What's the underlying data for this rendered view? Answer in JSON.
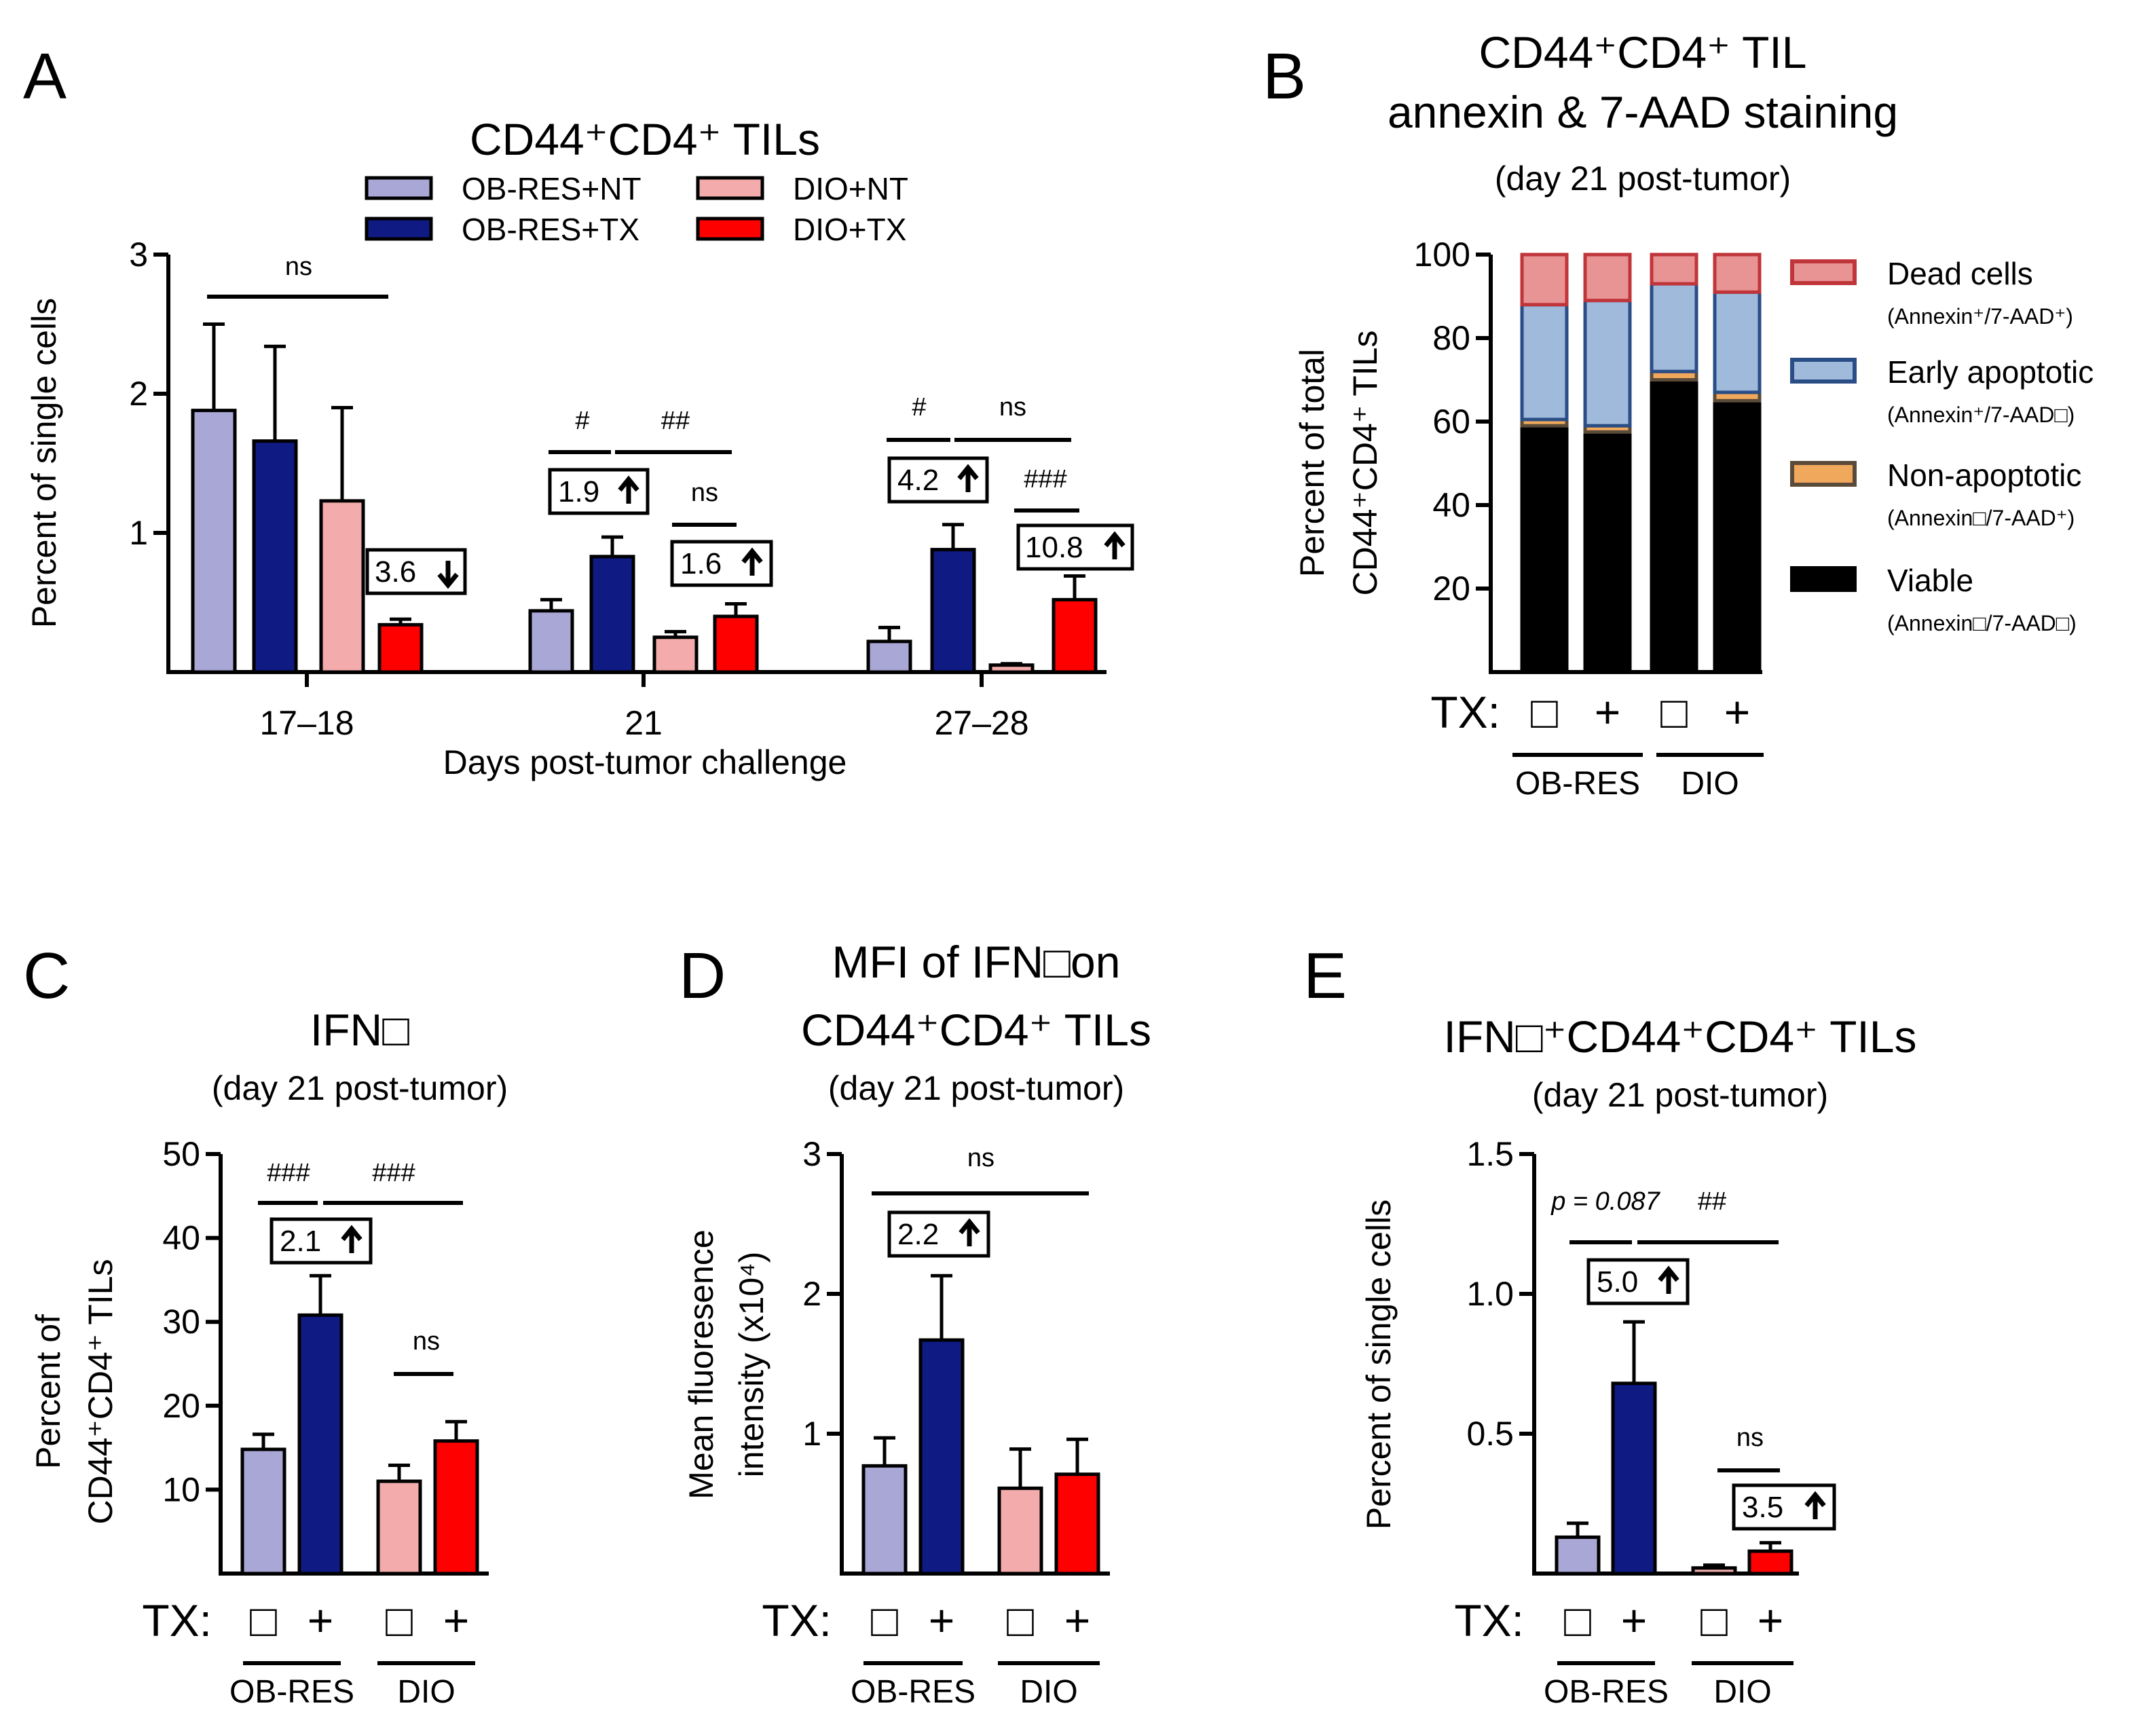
{
  "colors": {
    "ob_nt": "#a9a7d6",
    "ob_tx": "#0f1a83",
    "dio_nt": "#f3abab",
    "dio_tx": "#ff0000",
    "dead": "#e89494",
    "dead_edge": "#c0353a",
    "early": "#9fbadb",
    "early_edge": "#2a4d85",
    "nonapop": "#f0a95c",
    "nonapop_edge": "#5a4a3a",
    "viable": "#000000"
  },
  "legend_A": [
    {
      "label": "OB-RES+NT",
      "color": "#a9a7d6"
    },
    {
      "label": "DIO+NT",
      "color": "#f3abab"
    },
    {
      "label": "OB-RES+TX",
      "color": "#0f1a83"
    },
    {
      "label": "DIO+TX",
      "color": "#ff0000"
    }
  ],
  "legend_B": [
    {
      "label": "Dead cells",
      "sub": "(Annexin⁺/7-AAD⁺)",
      "color": "#e89494",
      "edge": "#c0353a"
    },
    {
      "label": "Early apoptotic",
      "sub": "(Annexin⁺/7-AAD□)",
      "color": "#9fbadb",
      "edge": "#2a4d85"
    },
    {
      "label": "Non-apoptotic",
      "sub": "(Annexin□/7-AAD⁺)",
      "color": "#f0a95c",
      "edge": "#5a4a3a"
    },
    {
      "label": "Viable",
      "sub": "(Annexin□/7-AAD□)",
      "color": "#000000",
      "edge": "#000000"
    }
  ],
  "tx_axis": {
    "tx_label": "TX:",
    "minus": "□",
    "plus": "+",
    "group1": "OB-RES",
    "group2": "DIO"
  },
  "chart_data": [
    {
      "panel": "A",
      "type": "bar",
      "title": "CD44⁺CD4⁺ TILs",
      "xlabel": "Days post-tumor challenge",
      "ylabel": "Percent of single cells",
      "ylim": [
        0,
        3
      ],
      "yticks": [
        "1",
        "2",
        "3"
      ],
      "categories": [
        "17–18",
        "21",
        "27–28"
      ],
      "series": [
        {
          "name": "OB-RES+NT",
          "values": [
            1.88,
            0.44,
            0.22
          ],
          "errors": [
            0.62,
            0.08,
            0.1
          ]
        },
        {
          "name": "OB-RES+TX",
          "values": [
            1.66,
            0.83,
            0.88
          ],
          "errors": [
            0.68,
            0.14,
            0.18
          ]
        },
        {
          "name": "DIO+NT",
          "values": [
            1.23,
            0.25,
            0.05
          ],
          "errors": [
            0.67,
            0.04,
            0.01
          ]
        },
        {
          "name": "DIO+TX",
          "values": [
            0.34,
            0.4,
            0.52
          ],
          "errors": [
            0.04,
            0.09,
            0.17
          ]
        }
      ],
      "annotations": [
        "ns",
        "3.6",
        "#",
        "##",
        "1.9",
        "ns",
        "1.6",
        "#",
        "ns",
        "4.2",
        "###",
        "10.8"
      ]
    },
    {
      "panel": "B",
      "type": "bar",
      "stacked": true,
      "title": "CD44⁺CD4⁺ TIL",
      "title_line2": "annexin & 7-AAD staining",
      "subtitle": "(day 21 post-tumor)",
      "ylabel": "Percent of total",
      "ylabel_line2": "CD44⁺CD4⁺ TILs",
      "ylim": [
        0,
        100
      ],
      "yticks": [
        "20",
        "40",
        "60",
        "80",
        "100"
      ],
      "categories": [
        "OB-RES −",
        "OB-RES +",
        "DIO −",
        "DIO +"
      ],
      "series": [
        {
          "name": "Viable",
          "values": [
            59,
            57.5,
            70,
            65
          ]
        },
        {
          "name": "Non-apoptotic",
          "values": [
            1.5,
            1.5,
            2,
            2
          ]
        },
        {
          "name": "Early apoptotic",
          "values": [
            27.5,
            30,
            21,
            24
          ]
        },
        {
          "name": "Dead cells",
          "values": [
            12,
            11,
            7,
            9
          ]
        }
      ]
    },
    {
      "panel": "C",
      "type": "bar",
      "title": "IFN□",
      "subtitle": "(day 21 post-tumor)",
      "ylabel": "Percent of",
      "ylabel_line2": "CD44⁺CD4⁺ TILs",
      "ylim": [
        0,
        50
      ],
      "yticks": [
        "10",
        "20",
        "30",
        "40",
        "50"
      ],
      "categories": [
        "OB-RES −",
        "OB-RES +",
        "DIO −",
        "DIO +"
      ],
      "values": [
        14.8,
        30.8,
        11.0,
        15.8
      ],
      "errors": [
        1.8,
        4.7,
        1.9,
        2.3
      ],
      "annotations": [
        "###",
        "###",
        "2.1",
        "ns"
      ]
    },
    {
      "panel": "D",
      "type": "bar",
      "title": "MFI of IFN□on",
      "title_line2": "CD44⁺CD4⁺ TILs",
      "subtitle": "(day 21 post-tumor)",
      "ylabel": "Mean fluoresence",
      "ylabel_line2": "intensity (x10⁴)",
      "ylim": [
        0,
        3
      ],
      "yticks": [
        "1",
        "2",
        "3"
      ],
      "categories": [
        "OB-RES −",
        "OB-RES +",
        "DIO −",
        "DIO +"
      ],
      "values": [
        0.77,
        1.67,
        0.61,
        0.71
      ],
      "errors": [
        0.2,
        0.46,
        0.28,
        0.25
      ],
      "annotations": [
        "ns",
        "2.2"
      ]
    },
    {
      "panel": "E",
      "type": "bar",
      "title": "IFN□⁺CD44⁺CD4⁺ TILs",
      "subtitle": "(day 21 post-tumor)",
      "ylabel": "Percent of single cells",
      "ylim": [
        0,
        1.5
      ],
      "yticks": [
        "0.5",
        "1.0",
        "1.5"
      ],
      "categories": [
        "OB-RES −",
        "OB-RES +",
        "DIO −",
        "DIO +"
      ],
      "values": [
        0.13,
        0.68,
        0.02,
        0.08
      ],
      "errors": [
        0.05,
        0.22,
        0.01,
        0.03
      ],
      "annotations": [
        "p = 0.087",
        "##",
        "5.0",
        "ns",
        "3.5"
      ]
    }
  ]
}
